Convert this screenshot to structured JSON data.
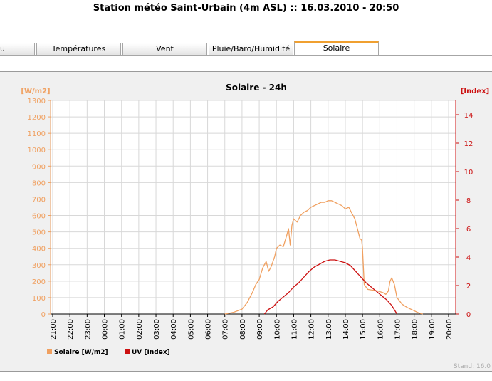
{
  "page": {
    "title": "Station météo Saint-Urbain (4m ASL) :: 16.03.2010 - 20:50"
  },
  "tabs": [
    {
      "label": "u",
      "active": false
    },
    {
      "label": "Températures",
      "active": false
    },
    {
      "label": "Vent",
      "active": false
    },
    {
      "label": "Pluie/Baro/Humidité",
      "active": false
    },
    {
      "label": "Solaire",
      "active": true
    }
  ],
  "colors": {
    "solar": "#f0a060",
    "uv": "#cc1111",
    "tab_accent": "#f0a030"
  },
  "footer": {
    "stand": "Stand: 16.0"
  },
  "chart_data": {
    "type": "line",
    "title": "Solaire - 24h",
    "y_left_label": "[W/m2]",
    "y_right_label": "[Index]",
    "ylim_left": [
      0,
      1300
    ],
    "ylim_right": [
      0,
      15
    ],
    "y_left_ticks": [
      0,
      100,
      200,
      300,
      400,
      500,
      600,
      700,
      800,
      900,
      1000,
      1100,
      1200,
      1300
    ],
    "y_right_ticks": [
      0,
      2,
      4,
      6,
      8,
      10,
      12,
      14
    ],
    "x_ticks": [
      "21:00",
      "22:00",
      "23:00",
      "00:00",
      "01:00",
      "02:00",
      "03:00",
      "04:00",
      "05:00",
      "06:00",
      "07:00",
      "08:00",
      "09:00",
      "10:00",
      "11:00",
      "12:00",
      "13:00",
      "14:00",
      "15:00",
      "16:00",
      "17:00",
      "18:00",
      "19:00",
      "20:00"
    ],
    "x_unit_hours_from_start": "21:00",
    "grid": true,
    "legend": "bottom-left",
    "series": [
      {
        "name": "Solaire [W/m2]",
        "axis": "left",
        "color": "#f0a060",
        "points": [
          [
            10.0,
            0
          ],
          [
            10.5,
            10
          ],
          [
            11.0,
            30
          ],
          [
            11.3,
            70
          ],
          [
            11.6,
            130
          ],
          [
            11.8,
            180
          ],
          [
            12.0,
            210
          ],
          [
            12.2,
            280
          ],
          [
            12.4,
            320
          ],
          [
            12.55,
            260
          ],
          [
            12.7,
            290
          ],
          [
            12.9,
            350
          ],
          [
            13.0,
            400
          ],
          [
            13.2,
            420
          ],
          [
            13.4,
            410
          ],
          [
            13.6,
            480
          ],
          [
            13.7,
            520
          ],
          [
            13.8,
            420
          ],
          [
            13.9,
            540
          ],
          [
            14.0,
            580
          ],
          [
            14.2,
            560
          ],
          [
            14.4,
            600
          ],
          [
            14.6,
            620
          ],
          [
            14.8,
            630
          ],
          [
            15.0,
            650
          ],
          [
            15.2,
            660
          ],
          [
            15.4,
            670
          ],
          [
            15.6,
            680
          ],
          [
            15.8,
            680
          ],
          [
            16.0,
            690
          ],
          [
            16.2,
            690
          ],
          [
            16.4,
            680
          ],
          [
            16.6,
            670
          ],
          [
            16.8,
            660
          ],
          [
            17.0,
            640
          ],
          [
            17.2,
            650
          ],
          [
            17.4,
            610
          ],
          [
            17.55,
            580
          ],
          [
            17.7,
            520
          ],
          [
            17.85,
            460
          ],
          [
            17.95,
            450
          ],
          [
            18.0,
            400
          ],
          [
            18.1,
            180
          ],
          [
            18.3,
            150
          ],
          [
            18.6,
            145
          ],
          [
            18.9,
            140
          ],
          [
            19.2,
            130
          ],
          [
            19.35,
            120
          ],
          [
            19.5,
            140
          ],
          [
            19.6,
            200
          ],
          [
            19.7,
            220
          ],
          [
            19.85,
            180
          ],
          [
            20.0,
            100
          ],
          [
            20.3,
            60
          ],
          [
            20.6,
            40
          ],
          [
            21.0,
            20
          ],
          [
            21.3,
            5
          ],
          [
            21.5,
            0
          ]
        ]
      },
      {
        "name": "UV [Index]",
        "axis": "right",
        "color": "#cc1111",
        "points": [
          [
            12.3,
            0
          ],
          [
            12.5,
            0.3
          ],
          [
            12.8,
            0.5
          ],
          [
            13.1,
            0.9
          ],
          [
            13.4,
            1.2
          ],
          [
            13.7,
            1.5
          ],
          [
            14.0,
            1.9
          ],
          [
            14.3,
            2.2
          ],
          [
            14.6,
            2.6
          ],
          [
            14.9,
            3.0
          ],
          [
            15.2,
            3.3
          ],
          [
            15.5,
            3.5
          ],
          [
            15.8,
            3.7
          ],
          [
            16.1,
            3.8
          ],
          [
            16.4,
            3.8
          ],
          [
            16.7,
            3.7
          ],
          [
            17.0,
            3.6
          ],
          [
            17.3,
            3.4
          ],
          [
            17.6,
            3.0
          ],
          [
            17.9,
            2.6
          ],
          [
            18.2,
            2.2
          ],
          [
            18.5,
            1.9
          ],
          [
            18.8,
            1.6
          ],
          [
            19.1,
            1.3
          ],
          [
            19.4,
            1.0
          ],
          [
            19.7,
            0.6
          ],
          [
            19.9,
            0.2
          ],
          [
            20.0,
            0
          ]
        ]
      }
    ]
  }
}
